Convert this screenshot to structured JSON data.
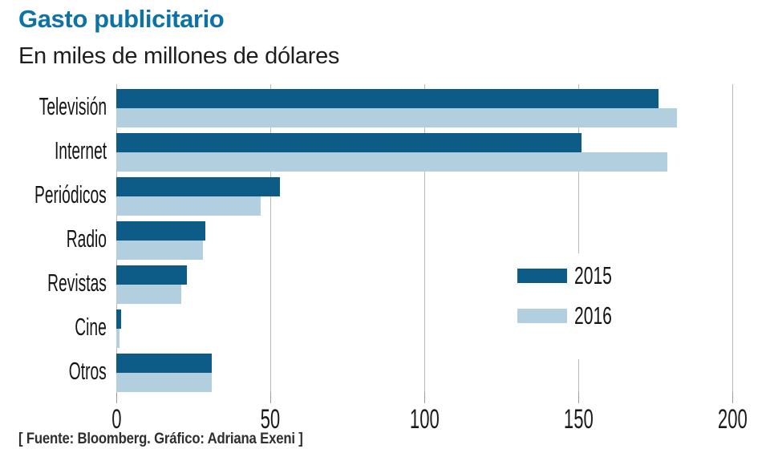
{
  "header": {
    "title": "Gasto publicitario",
    "subtitle": "En miles de millones de dólares"
  },
  "chart_data": {
    "type": "bar",
    "orientation": "horizontal",
    "title": "Gasto publicitario",
    "subtitle": "En miles de millones de dólares",
    "categories": [
      "Televisión",
      "Internet",
      "Periódicos",
      "Radio",
      "Revistas",
      "Cine",
      "Otros"
    ],
    "series": [
      {
        "name": "2015",
        "color": "#0d5c87",
        "values": [
          176,
          151,
          53,
          29,
          23,
          1.5,
          31
        ]
      },
      {
        "name": "2016",
        "color": "#b2cfe0",
        "values": [
          182,
          179,
          47,
          28,
          21,
          1,
          31
        ]
      }
    ],
    "xlim": [
      0,
      200
    ],
    "xticks": [
      0,
      50,
      100,
      150,
      200
    ],
    "grid": true,
    "legend_position": "middle-right"
  },
  "footer": {
    "source": "[ Fuente: Bloomberg. Gráfico: Adriana Exeni ]"
  },
  "colors": {
    "title_blue": "#0e72a6",
    "series_2015": "#0d5c87",
    "series_2016": "#b2cfe0",
    "gridline": "#b9b9b9",
    "text": "#1b1b1b"
  }
}
